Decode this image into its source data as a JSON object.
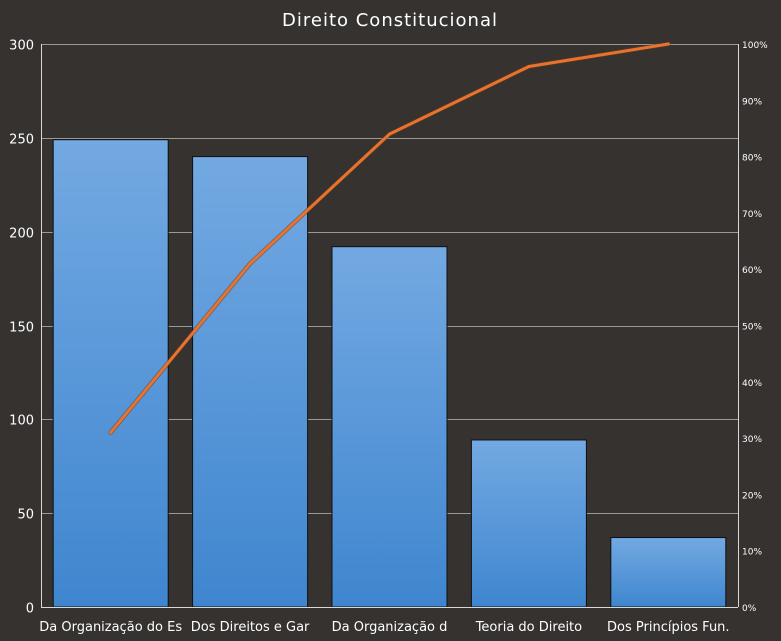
{
  "chart_data": {
    "type": "bar",
    "title": "Direito Constitucional",
    "categories": [
      "Da Organização do Es",
      "Dos Direitos e Gar",
      "Da Organização d",
      "Teoria do Direito",
      "Dos Princípios Fun."
    ],
    "series": [
      {
        "type": "bar",
        "values": [
          249,
          240,
          192,
          89,
          37
        ]
      },
      {
        "type": "line",
        "axis": "right",
        "values": [
          0.31,
          0.61,
          0.84,
          0.96,
          1.0
        ]
      }
    ],
    "ylim": [
      0,
      300
    ],
    "yticks": [
      0,
      50,
      100,
      150,
      200,
      250,
      300
    ],
    "y2lim": [
      0,
      1
    ],
    "y2ticks": [
      "0%",
      "10%",
      "20%",
      "30%",
      "40%",
      "50%",
      "60%",
      "70%",
      "80%",
      "90%",
      "100%"
    ],
    "grid": true,
    "colors": {
      "background": "#353230",
      "bar_top": "#73a9e2",
      "bar_bottom": "#3f86cf",
      "line": "#e8732e",
      "grid": "#9a9a9a",
      "text": "#ffffff"
    }
  }
}
